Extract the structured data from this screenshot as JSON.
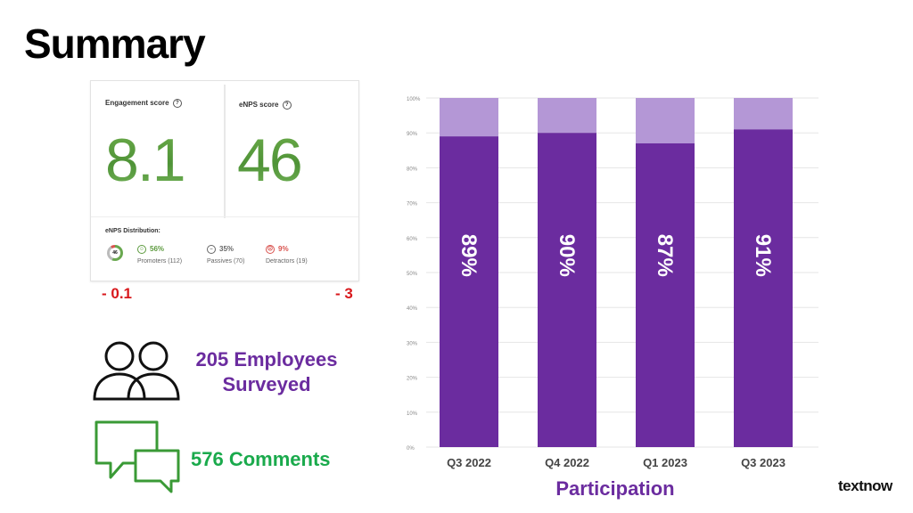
{
  "title": "Summary",
  "scores": {
    "engagement": {
      "label": "Engagement score",
      "value": "8.1",
      "help_icon": "help-circle-icon"
    },
    "enps": {
      "label": "eNPS score",
      "value": "46",
      "help_icon": "help-circle-icon"
    }
  },
  "distribution": {
    "label": "eNPS Distribution:",
    "gauge_value": "46",
    "promoters": {
      "percent": "56%",
      "label": "Promoters (112)",
      "color": "#5c9a3e",
      "icon": "smile-face-icon"
    },
    "passives": {
      "percent": "35%",
      "label": "Passives (70)",
      "color": "#666666",
      "icon": "neutral-face-icon"
    },
    "detractors": {
      "percent": "9%",
      "label": "Detractors (19)",
      "color": "#d9534f",
      "icon": "frown-face-icon"
    }
  },
  "deltas": {
    "engagement": "- 0.1",
    "enps": "- 3"
  },
  "employees": {
    "line1": "205 Employees",
    "line2": "Surveyed",
    "icon": "people-icon"
  },
  "comments": {
    "text": "576 Comments",
    "icon": "chat-bubbles-icon"
  },
  "brand": "textnow",
  "colors": {
    "purple": "#6b2c9f",
    "light_purple": "#b497d6",
    "green": "#1aaa4c",
    "red": "#d8181c"
  },
  "chart_data": {
    "type": "bar",
    "title": "",
    "xlabel": "Participation",
    "ylabel": "",
    "categories": [
      "Q3 2022",
      "Q4 2022",
      "Q1 2023",
      "Q3 2023"
    ],
    "values": [
      89,
      90,
      87,
      91
    ],
    "bar_labels": [
      "89%",
      "90%",
      "87%",
      "91%"
    ],
    "stack_total": 100,
    "ylim": [
      0,
      100
    ],
    "yticks": [
      "0%",
      "10%",
      "20%",
      "30%",
      "40%",
      "50%",
      "60%",
      "70%",
      "80%",
      "90%",
      "100%"
    ],
    "grid": true,
    "stacked": true
  }
}
